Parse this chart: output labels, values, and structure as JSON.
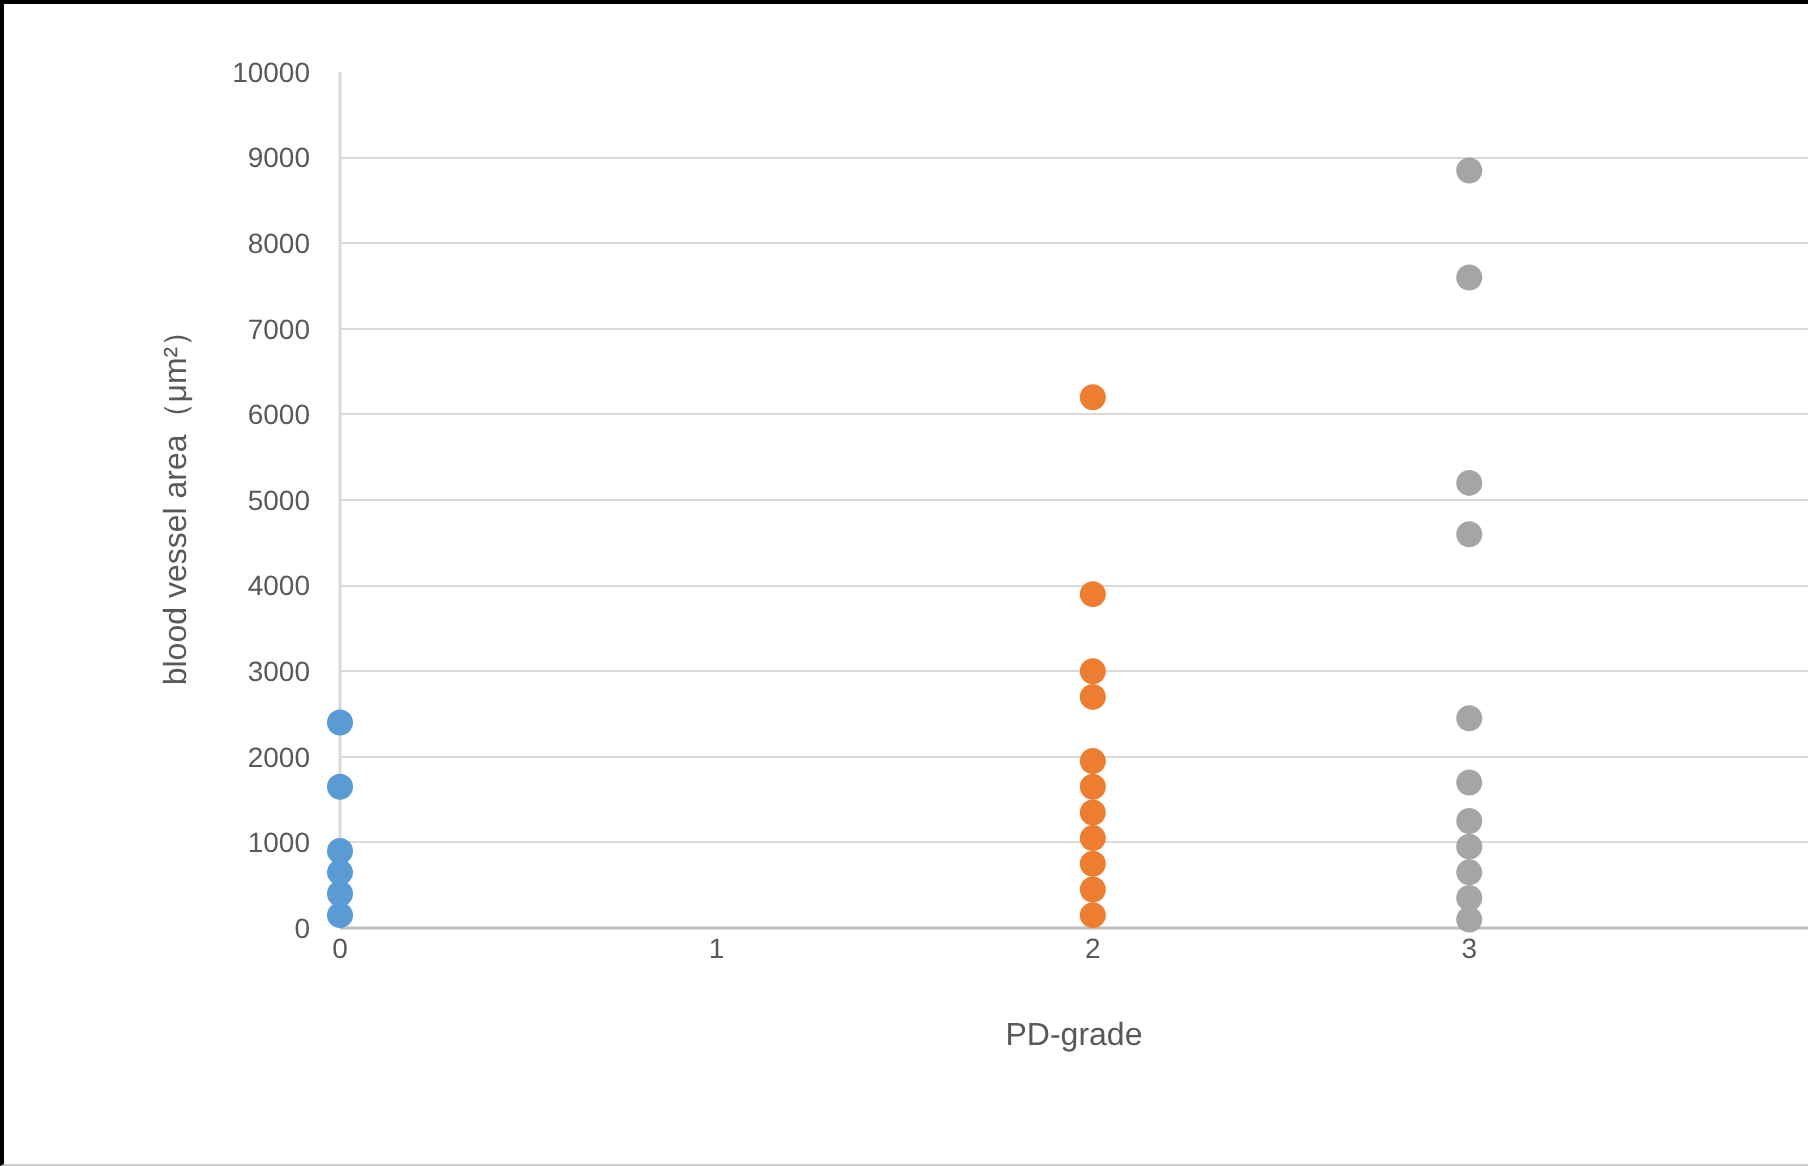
{
  "chart_data": {
    "type": "scatter",
    "xlabel": "PD-grade",
    "ylabel": "blood vessel area（μm²）",
    "xlim": [
      0,
      3.9
    ],
    "xticks": [
      0,
      1,
      2,
      3
    ],
    "ylim": [
      0,
      10000
    ],
    "yticks": [
      0,
      1000,
      2000,
      3000,
      4000,
      5000,
      6000,
      7000,
      8000,
      9000,
      10000
    ],
    "grid": "y",
    "marker": "circle",
    "series": [
      {
        "color": "#5b9bd5",
        "x": [
          0,
          0,
          0,
          0,
          0,
          0
        ],
        "values": [
          2400,
          1650,
          900,
          650,
          400,
          150
        ]
      },
      {
        "color": "#ed7d31",
        "x": [
          2,
          2,
          2,
          2,
          2,
          2,
          2,
          2,
          2,
          2,
          2
        ],
        "values": [
          6200,
          3900,
          3000,
          2700,
          1950,
          1650,
          1350,
          1050,
          750,
          450,
          150
        ]
      },
      {
        "color": "#a5a5a5",
        "x": [
          3,
          3,
          3,
          3,
          3,
          3,
          3,
          3,
          3,
          3,
          3
        ],
        "values": [
          8850,
          7600,
          5200,
          4600,
          2450,
          1700,
          1250,
          950,
          650,
          350,
          100
        ]
      }
    ]
  }
}
